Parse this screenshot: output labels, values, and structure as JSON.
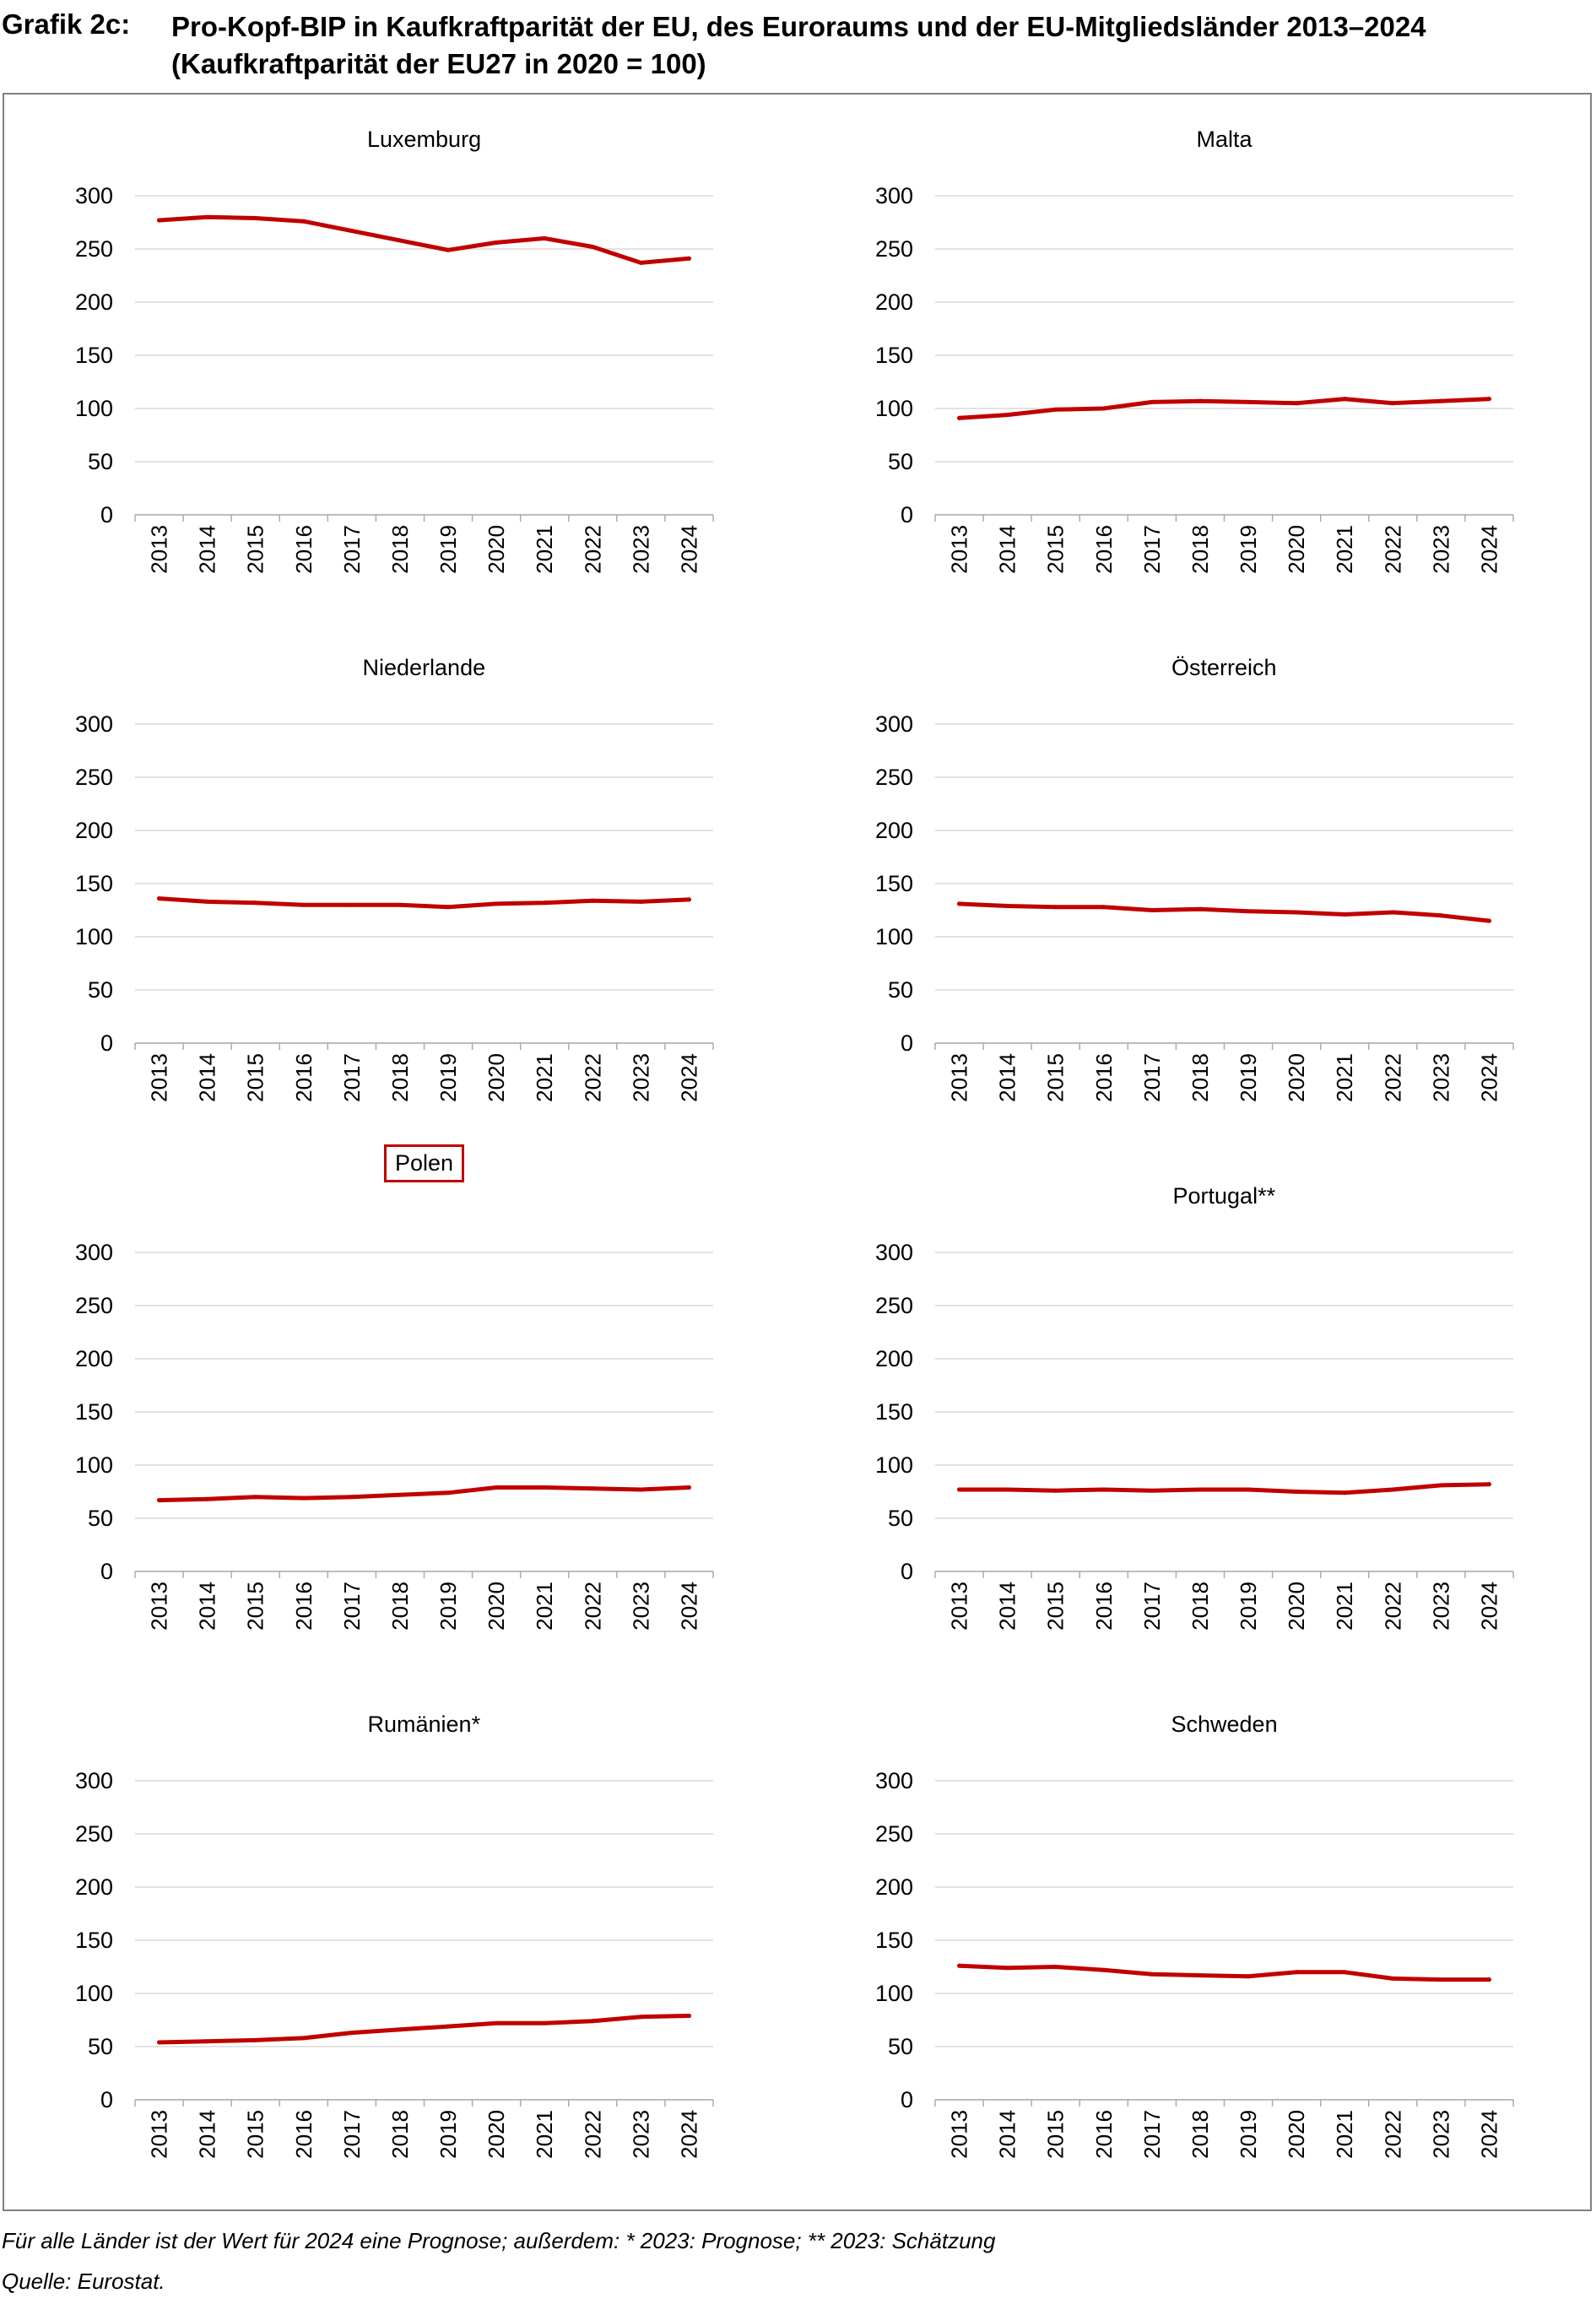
{
  "header": {
    "label": "Grafik 2c:",
    "title_line1": "Pro-Kopf-BIP in Kaufkraftparität der EU, des Euroraums und der EU-Mitgliedsländer 2013–2024",
    "title_line2": "(Kaufkraftparität der EU27 in 2020 = 100)"
  },
  "footer": {
    "note": "Für alle Länder ist der Wert für 2024 eine Prognose; außerdem: * 2023: Prognose; ** 2023: Schätzung",
    "source": "Quelle: Eurostat."
  },
  "colors": {
    "line": "#c00000",
    "grid": "#d9d9d9",
    "axis": "#a6a6a6",
    "highlight": "#c00000"
  },
  "chart_data": [
    {
      "type": "line",
      "title": "Luxemburg",
      "categories": [
        "2013",
        "2014",
        "2015",
        "2016",
        "2017",
        "2018",
        "2019",
        "2020",
        "2021",
        "2022",
        "2023",
        "2024"
      ],
      "values": [
        277,
        280,
        279,
        276,
        267,
        258,
        249,
        256,
        260,
        252,
        237,
        241
      ],
      "ylim": [
        0,
        300
      ],
      "yticks": [
        0,
        50,
        100,
        150,
        200,
        250,
        300
      ],
      "highlight": false
    },
    {
      "type": "line",
      "title": "Malta",
      "categories": [
        "2013",
        "2014",
        "2015",
        "2016",
        "2017",
        "2018",
        "2019",
        "2020",
        "2021",
        "2022",
        "2023",
        "2024"
      ],
      "values": [
        91,
        94,
        99,
        100,
        106,
        107,
        106,
        105,
        109,
        105,
        107,
        109
      ],
      "ylim": [
        0,
        300
      ],
      "yticks": [
        0,
        50,
        100,
        150,
        200,
        250,
        300
      ],
      "highlight": false
    },
    {
      "type": "line",
      "title": "Niederlande",
      "categories": [
        "2013",
        "2014",
        "2015",
        "2016",
        "2017",
        "2018",
        "2019",
        "2020",
        "2021",
        "2022",
        "2023",
        "2024"
      ],
      "values": [
        136,
        133,
        132,
        130,
        130,
        130,
        128,
        131,
        132,
        134,
        133,
        135
      ],
      "ylim": [
        0,
        300
      ],
      "yticks": [
        0,
        50,
        100,
        150,
        200,
        250,
        300
      ],
      "highlight": false
    },
    {
      "type": "line",
      "title": "Österreich",
      "categories": [
        "2013",
        "2014",
        "2015",
        "2016",
        "2017",
        "2018",
        "2019",
        "2020",
        "2021",
        "2022",
        "2023",
        "2024"
      ],
      "values": [
        131,
        129,
        128,
        128,
        125,
        126,
        124,
        123,
        121,
        123,
        120,
        115
      ],
      "ylim": [
        0,
        300
      ],
      "yticks": [
        0,
        50,
        100,
        150,
        200,
        250,
        300
      ],
      "highlight": false
    },
    {
      "type": "line",
      "title": "Polen",
      "categories": [
        "2013",
        "2014",
        "2015",
        "2016",
        "2017",
        "2018",
        "2019",
        "2020",
        "2021",
        "2022",
        "2023",
        "2024"
      ],
      "values": [
        67,
        68,
        70,
        69,
        70,
        72,
        74,
        79,
        79,
        78,
        77,
        79
      ],
      "ylim": [
        0,
        300
      ],
      "yticks": [
        0,
        50,
        100,
        150,
        200,
        250,
        300
      ],
      "highlight": true
    },
    {
      "type": "line",
      "title": "Portugal**",
      "categories": [
        "2013",
        "2014",
        "2015",
        "2016",
        "2017",
        "2018",
        "2019",
        "2020",
        "2021",
        "2022",
        "2023",
        "2024"
      ],
      "values": [
        77,
        77,
        76,
        77,
        76,
        77,
        77,
        75,
        74,
        77,
        81,
        82
      ],
      "ylim": [
        0,
        300
      ],
      "yticks": [
        0,
        50,
        100,
        150,
        200,
        250,
        300
      ],
      "highlight": false
    },
    {
      "type": "line",
      "title": "Rumänien*",
      "categories": [
        "2013",
        "2014",
        "2015",
        "2016",
        "2017",
        "2018",
        "2019",
        "2020",
        "2021",
        "2022",
        "2023",
        "2024"
      ],
      "values": [
        54,
        55,
        56,
        58,
        63,
        66,
        69,
        72,
        72,
        74,
        78,
        79
      ],
      "ylim": [
        0,
        300
      ],
      "yticks": [
        0,
        50,
        100,
        150,
        200,
        250,
        300
      ],
      "highlight": false
    },
    {
      "type": "line",
      "title": "Schweden",
      "categories": [
        "2013",
        "2014",
        "2015",
        "2016",
        "2017",
        "2018",
        "2019",
        "2020",
        "2021",
        "2022",
        "2023",
        "2024"
      ],
      "values": [
        126,
        124,
        125,
        122,
        118,
        117,
        116,
        120,
        120,
        114,
        113,
        113
      ],
      "ylim": [
        0,
        300
      ],
      "yticks": [
        0,
        50,
        100,
        150,
        200,
        250,
        300
      ],
      "highlight": false
    }
  ]
}
